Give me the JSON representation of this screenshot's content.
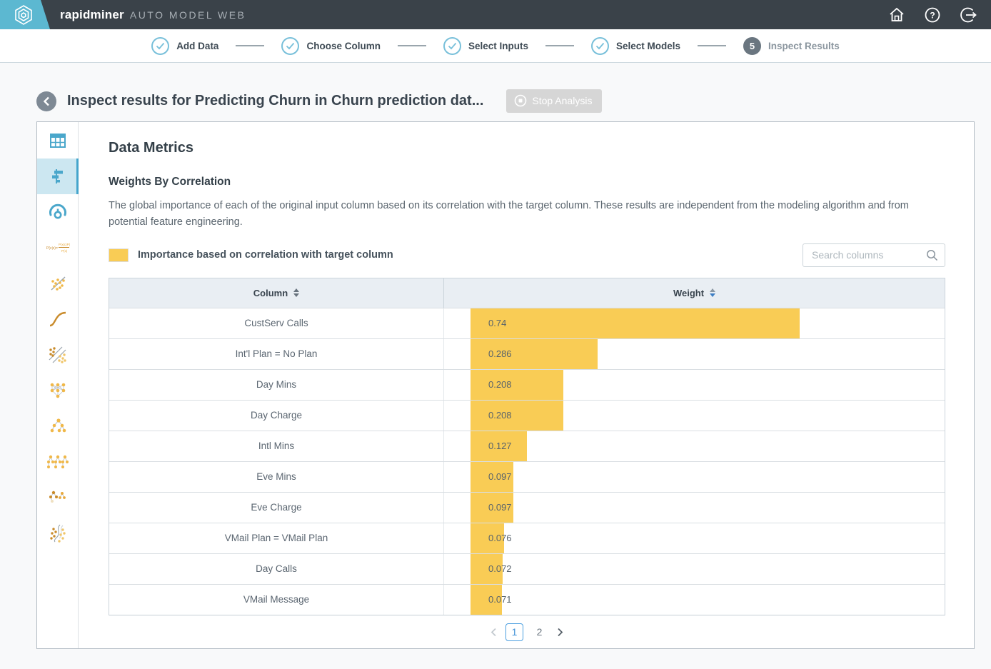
{
  "topbar": {
    "brand": "rapidminer",
    "product": "AUTO MODEL WEB"
  },
  "stepper": {
    "steps": [
      {
        "label": "Add Data",
        "state": "complete"
      },
      {
        "label": "Choose Column",
        "state": "complete"
      },
      {
        "label": "Select Inputs",
        "state": "complete"
      },
      {
        "label": "Select Models",
        "state": "complete"
      },
      {
        "label": "Inspect Results",
        "state": "current",
        "number": "5"
      }
    ]
  },
  "title_bar": {
    "title": "Inspect results for Predicting Churn in Churn prediction dat...",
    "stop_button_label": "Stop Analysis"
  },
  "sidebar": {
    "icons": [
      "data-table-icon",
      "weights-bar-chart-icon",
      "model-gauge-icon",
      "naive-bayes-formula-icon",
      "linear-model-icon",
      "logistic-regression-curve-icon",
      "svm-margin-icon",
      "neural-network-icon",
      "decision-tree-icon",
      "random-forest-icon",
      "gradient-boosted-trees-icon",
      "support-vector-curve-icon"
    ],
    "selected_index": 1
  },
  "content": {
    "heading": "Data Metrics",
    "subheading": "Weights By Correlation",
    "description": "The global importance of each of the original input column based on its correlation with the target column. These results are independent from the modeling algorithm and from potential feature engineering.",
    "legend_label": "Importance based on correlation with target column",
    "search_placeholder": "Search columns"
  },
  "table": {
    "columns": [
      "Column",
      "Weight"
    ],
    "sorted_by": "Weight",
    "rows": [
      {
        "column": "CustServ Calls",
        "weight": "0.74",
        "value": 0.74
      },
      {
        "column": "Int'l Plan = No Plan",
        "weight": "0.286",
        "value": 0.286
      },
      {
        "column": "Day Mins",
        "weight": "0.208",
        "value": 0.208
      },
      {
        "column": "Day Charge",
        "weight": "0.208",
        "value": 0.208
      },
      {
        "column": "Intl Mins",
        "weight": "0.127",
        "value": 0.127
      },
      {
        "column": "Eve Mins",
        "weight": "0.097",
        "value": 0.097
      },
      {
        "column": "Eve Charge",
        "weight": "0.097",
        "value": 0.097
      },
      {
        "column": "VMail Plan = VMail Plan",
        "weight": "0.076",
        "value": 0.076
      },
      {
        "column": "Day Calls",
        "weight": "0.072",
        "value": 0.072
      },
      {
        "column": "VMail Message",
        "weight": "0.071",
        "value": 0.071
      }
    ]
  },
  "pagination": {
    "pages": [
      "1",
      "2"
    ],
    "current": "1"
  },
  "colors": {
    "bar_yellow": "#F9CC55",
    "brand_blue": "#5CB8D1",
    "sidebar_icon_blue": "#4AA7CB",
    "topbar_bg": "#3A4249",
    "pagination_blue": "#4C9FE0"
  },
  "chart_data": {
    "type": "bar",
    "orientation": "horizontal",
    "title": "Weights By Correlation",
    "categories": [
      "CustServ Calls",
      "Int'l Plan = No Plan",
      "Day Mins",
      "Day Charge",
      "Intl Mins",
      "Eve Mins",
      "Eve Charge",
      "VMail Plan = VMail Plan",
      "Day Calls",
      "VMail Message"
    ],
    "values": [
      0.74,
      0.286,
      0.208,
      0.208,
      0.127,
      0.097,
      0.097,
      0.076,
      0.072,
      0.071
    ],
    "xlabel": "Weight",
    "ylabel": "Column",
    "xlim": [
      0,
      1.05
    ],
    "legend": [
      "Importance based on correlation with target column"
    ],
    "bar_color": "#F9CC55"
  }
}
